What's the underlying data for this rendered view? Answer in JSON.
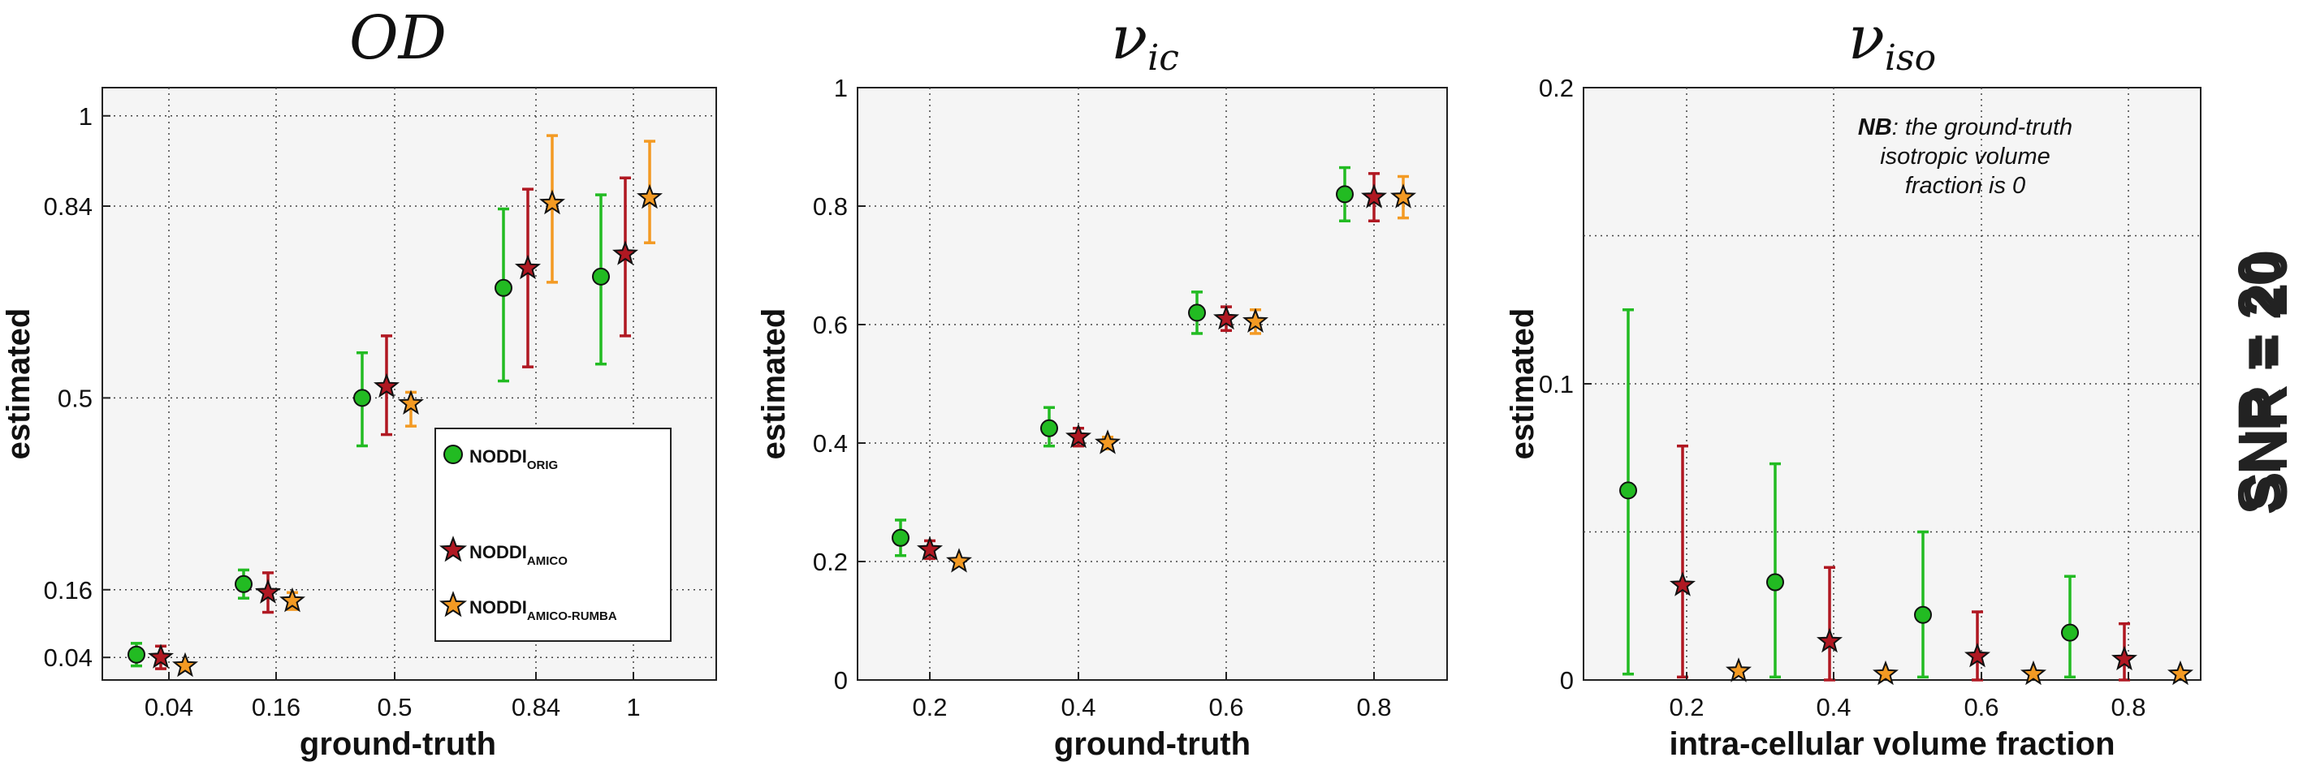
{
  "figure_label": "SNR = 20",
  "legend": {
    "items": [
      {
        "main": "NODDI",
        "sub": "ORIG",
        "color": "#22bb22",
        "marker": "circle"
      },
      {
        "main": "NODDI",
        "sub": "AMICO",
        "color": "#b01822",
        "marker": "star"
      },
      {
        "main": "NODDI",
        "sub": "AMICO-RUMBA",
        "color": "#f39a23",
        "marker": "star"
      }
    ]
  },
  "note": {
    "bold": "NB",
    "line1": ": the ground-truth",
    "line2": "isotropic volume",
    "line3": "fraction is 0"
  },
  "colors": {
    "orig": "#22bb22",
    "amico": "#b01822",
    "rumba": "#f39a23",
    "panel_bg": "#f5f5f5"
  },
  "chart_data": [
    {
      "type": "scatter",
      "title": "OD",
      "xlabel": "ground-truth",
      "ylabel": "estimated",
      "x_ticks": [
        "0.04",
        "0.16",
        "0.5",
        "0.84",
        "1"
      ],
      "y_ticks": [
        0.04,
        0.16,
        0.5,
        0.84,
        1
      ],
      "y_tick_labels": [
        "0.04",
        "0.16",
        "0.5",
        "0.84",
        "1"
      ],
      "ylim": [
        0,
        1.05
      ],
      "grid": true,
      "legend_position": "bottom-right",
      "series": [
        {
          "name": "NODDI ORIG",
          "values": [
            0.045,
            0.17,
            0.5,
            0.695,
            0.715
          ],
          "err_low": [
            0.02,
            0.025,
            0.085,
            0.165,
            0.155
          ],
          "err_high": [
            0.02,
            0.025,
            0.08,
            0.14,
            0.145
          ]
        },
        {
          "name": "NODDI AMICO",
          "values": [
            0.04,
            0.155,
            0.52,
            0.73,
            0.755
          ],
          "err_low": [
            0.02,
            0.035,
            0.085,
            0.175,
            0.145
          ],
          "err_high": [
            0.02,
            0.035,
            0.09,
            0.14,
            0.135
          ]
        },
        {
          "name": "NODDI AMICO-RUMBA",
          "values": [
            0.025,
            0.14,
            0.49,
            0.845,
            0.855
          ],
          "err_low": [
            0,
            0.015,
            0.04,
            0.14,
            0.08
          ],
          "err_high": [
            0,
            0.015,
            0.02,
            0.12,
            0.1
          ]
        }
      ]
    },
    {
      "type": "scatter",
      "title": "ν",
      "title_sub": "ic",
      "xlabel": "ground-truth",
      "ylabel": "estimated",
      "x_ticks": [
        "0.2",
        "0.4",
        "0.6",
        "0.8"
      ],
      "y_ticks": [
        0,
        0.2,
        0.4,
        0.6,
        0.8,
        1
      ],
      "y_tick_labels": [
        "0",
        "0.2",
        "0.4",
        "0.6",
        "0.8",
        "1"
      ],
      "ylim": [
        0,
        1
      ],
      "grid": true,
      "series": [
        {
          "name": "NODDI ORIG",
          "values": [
            0.24,
            0.425,
            0.62,
            0.82
          ],
          "err_low": [
            0.03,
            0.03,
            0.035,
            0.045
          ],
          "err_high": [
            0.03,
            0.035,
            0.035,
            0.045
          ]
        },
        {
          "name": "NODDI AMICO",
          "values": [
            0.22,
            0.41,
            0.61,
            0.815
          ],
          "err_low": [
            0.015,
            0.015,
            0.02,
            0.04
          ],
          "err_high": [
            0.015,
            0.015,
            0.02,
            0.04
          ]
        },
        {
          "name": "NODDI AMICO-RUMBA",
          "values": [
            0.2,
            0.4,
            0.605,
            0.815
          ],
          "err_low": [
            0,
            0.01,
            0.02,
            0.035
          ],
          "err_high": [
            0,
            0.01,
            0.02,
            0.035
          ]
        }
      ]
    },
    {
      "type": "scatter",
      "title": "ν",
      "title_sub": "iso",
      "xlabel": "intra-cellular volume fraction",
      "ylabel": "estimated",
      "x_ticks": [
        "0.2",
        "0.4",
        "0.6",
        "0.8"
      ],
      "y_ticks": [
        0,
        0.1,
        0.2
      ],
      "y_tick_labels": [
        "0",
        "0.1",
        "0.2"
      ],
      "y_minor_grid": [
        0.05,
        0.15
      ],
      "ylim": [
        0,
        0.2
      ],
      "grid": true,
      "series": [
        {
          "name": "NODDI ORIG",
          "values": [
            0.064,
            0.033,
            0.022,
            0.016
          ],
          "err_low": [
            0.062,
            0.032,
            0.021,
            0.015
          ],
          "err_high": [
            0.061,
            0.04,
            0.028,
            0.019
          ]
        },
        {
          "name": "NODDI AMICO",
          "values": [
            0.032,
            0.013,
            0.008,
            0.007
          ],
          "err_low": [
            0.031,
            0.013,
            0.008,
            0.007
          ],
          "err_high": [
            0.047,
            0.025,
            0.015,
            0.012
          ]
        },
        {
          "name": "NODDI AMICO-RUMBA",
          "values": [
            0.003,
            0.002,
            0.002,
            0.002
          ],
          "err_low": [
            0,
            0,
            0,
            0
          ],
          "err_high": [
            0,
            0,
            0,
            0
          ]
        }
      ]
    }
  ]
}
